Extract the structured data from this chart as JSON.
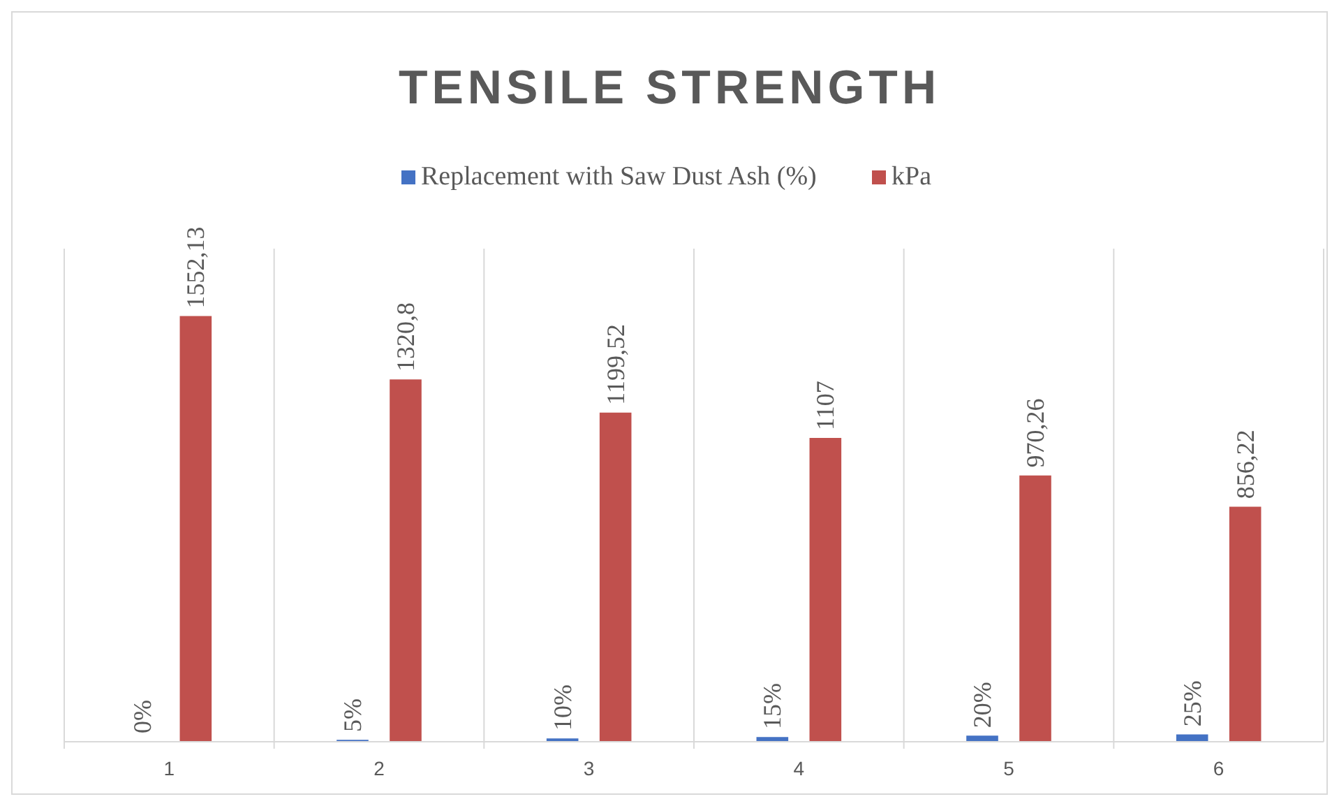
{
  "chart_data": {
    "type": "bar",
    "title": "TENSILE STRENGTH",
    "categories": [
      "1",
      "2",
      "3",
      "4",
      "5",
      "6"
    ],
    "series": [
      {
        "name": "Replacement with Saw Dust Ash (%)",
        "color": "#4472c4",
        "values": [
          0,
          5,
          10,
          15,
          20,
          25
        ],
        "value_labels": [
          "0%",
          "5%",
          "10%",
          "15%",
          "20%",
          "25%"
        ]
      },
      {
        "name": "kPa",
        "color": "#c0504d",
        "values": [
          1552.13,
          1320.8,
          1199.52,
          1107,
          970.26,
          856.22
        ],
        "value_labels": [
          "1552,13",
          "1320,8",
          "1199,52",
          "1107",
          "970,26",
          "856,22"
        ]
      }
    ],
    "grid": "x",
    "legend": "top"
  }
}
